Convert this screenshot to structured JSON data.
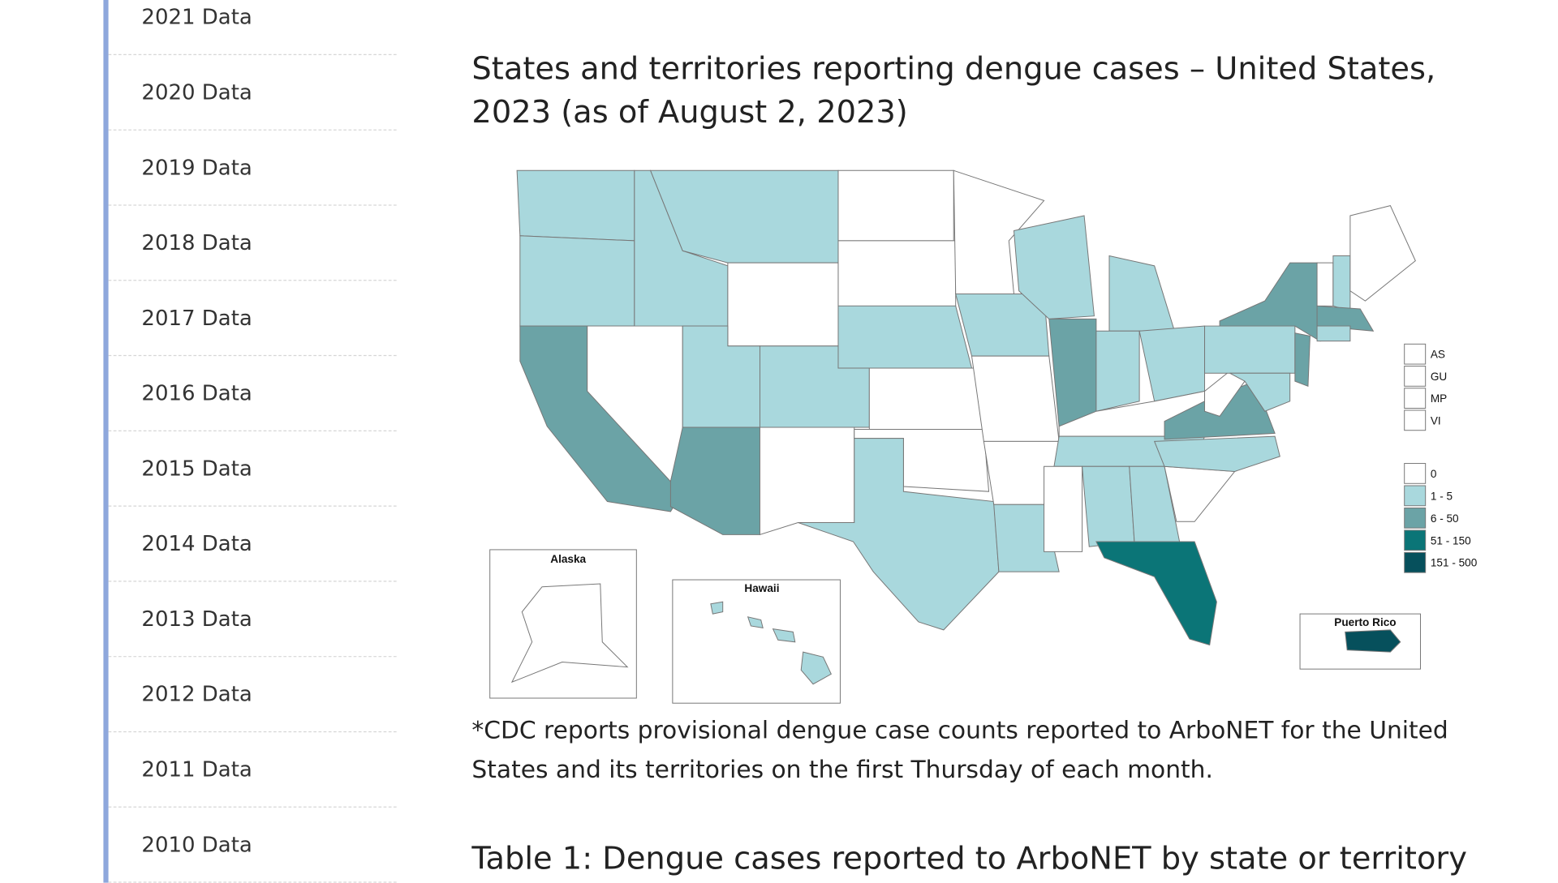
{
  "sidebar": {
    "items": [
      "2021 Data",
      "2020 Data",
      "2019 Data",
      "2018 Data",
      "2017 Data",
      "2016 Data",
      "2015 Data",
      "2014 Data",
      "2013 Data",
      "2012 Data",
      "2011 Data",
      "2010 Data"
    ]
  },
  "article": {
    "title": "States and territories reporting dengue cases – United States, 2023 (as of August 2, 2023)",
    "map": {
      "insets": [
        "Alaska",
        "Hawaii",
        "Puerto Rico"
      ],
      "territories": [
        "AS",
        "GU",
        "MP",
        "VI"
      ],
      "legend": [
        {
          "label": "0",
          "color": "#ffffff"
        },
        {
          "label": "1 - 5",
          "color": "#a9d8dd"
        },
        {
          "label": "6 - 50",
          "color": "#6ba3a6"
        },
        {
          "label": "51 - 150",
          "color": "#0b7577"
        },
        {
          "label": "151 - 500",
          "color": "#06505c"
        }
      ]
    },
    "footnote": "*CDC reports provisional dengue case counts reported to ArboNET for the United States and its territories on the first Thursday of each month.",
    "table_heading": "Table 1: Dengue cases reported to ArboNET by state or territory"
  }
}
